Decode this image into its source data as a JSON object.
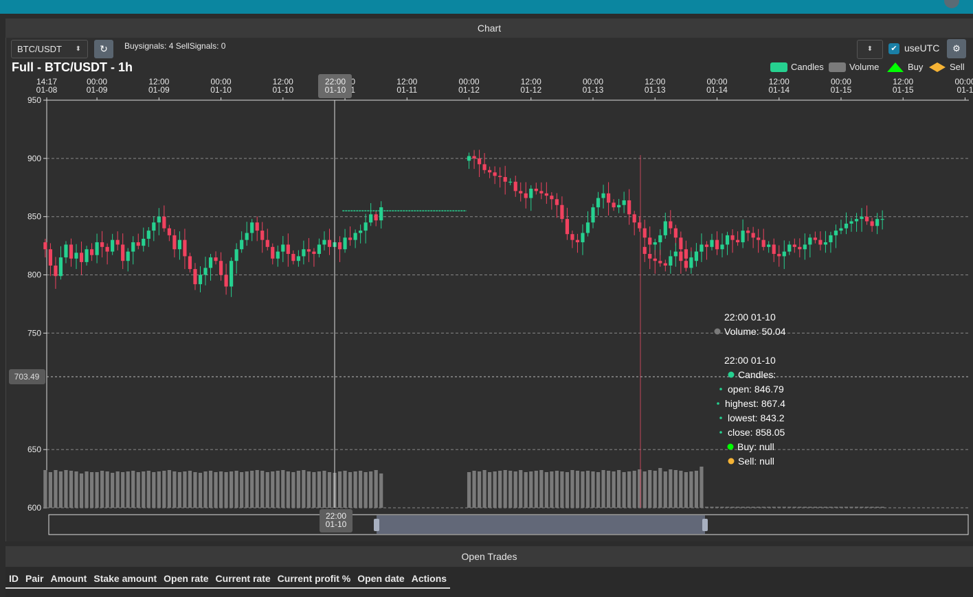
{
  "panel": {
    "title": "Chart"
  },
  "pair_select": {
    "value": "BTC/USDT"
  },
  "refresh_label": "↻",
  "signals": "Buysignals: 4  SellSignals: 0",
  "use_utc_label": "useUTC",
  "trades": {
    "title": "Open Trades",
    "columns": [
      "ID",
      "Pair",
      "Amount",
      "Stake amount",
      "Open rate",
      "Current rate",
      "Current profit %",
      "Open date",
      "Actions"
    ]
  },
  "colors": {
    "up": "#26d190",
    "down": "#f0425f",
    "volume": "#7a7a7a",
    "buy": "#00ff00",
    "sell": "#f5b335",
    "accent": "#0b86a0"
  },
  "chart_data": {
    "type": "candlestick",
    "title": "Full - BTC/USDT - 1h",
    "legend": [
      "Candles",
      "Volume",
      "Buy",
      "Sell"
    ],
    "legend_position": "top-right",
    "ylim": [
      600,
      950
    ],
    "yticks": [
      "950",
      "900",
      "850",
      "800",
      "750",
      "650",
      "600"
    ],
    "y_pointer_label": "703.49",
    "x_ticks": [
      [
        "14:17",
        "01-08"
      ],
      [
        "00:00",
        "01-09"
      ],
      [
        "12:00",
        "01-09"
      ],
      [
        "00:00",
        "01-10"
      ],
      [
        "12:00",
        "01-10"
      ],
      [
        "00:00",
        "01-11"
      ],
      [
        "12:00",
        "01-11"
      ],
      [
        "00:00",
        "01-12"
      ],
      [
        "12:00",
        "01-12"
      ],
      [
        "00:00",
        "01-13"
      ],
      [
        "12:00",
        "01-13"
      ],
      [
        "00:00",
        "01-14"
      ],
      [
        "12:00",
        "01-14"
      ],
      [
        "00:00",
        "01-15"
      ],
      [
        "12:00",
        "01-15"
      ],
      [
        "00:00",
        "01-1"
      ]
    ],
    "x_pointer_label": [
      "22:00",
      "01-10"
    ],
    "grid": true,
    "tooltip": {
      "volume_time": "22:00 01-10",
      "volume": "Volume: 50.04",
      "candle_time": "22:00 01-10",
      "candles": "Candles:",
      "open": "open: 846.79",
      "highest": "highest: 867.4",
      "lowest": "lowest: 843.2",
      "close": "close: 858.05",
      "buy": "Buy: null",
      "sell": "Sell: null"
    },
    "segments": [
      {
        "note": "2024-01-08 14:00 to 2024-01-10 23:00",
        "closes": [
          822,
          808,
          799,
          815,
          826,
          814,
          819,
          811,
          822,
          817,
          828,
          824,
          820,
          830,
          826,
          812,
          820,
          828,
          825,
          831,
          838,
          845,
          850,
          840,
          834,
          822,
          830,
          816,
          805,
          792,
          800,
          806,
          815,
          812,
          800,
          790,
          812,
          822,
          830,
          836,
          845,
          838,
          830,
          824,
          814,
          820,
          826,
          818,
          812,
          816,
          822,
          820,
          818,
          826,
          830,
          824,
          828,
          822,
          832,
          830,
          836,
          838,
          845,
          852,
          846.79,
          858.05
        ],
        "volumes": [
          55,
          52,
          55,
          53,
          55,
          54,
          53,
          50,
          53,
          52,
          52,
          54,
          53,
          51,
          53,
          52,
          53,
          54,
          52,
          53,
          54,
          52,
          53,
          54,
          55,
          53,
          52,
          53,
          54,
          52,
          51,
          53,
          54,
          52,
          53,
          52,
          53,
          54,
          52,
          53,
          54,
          55,
          54,
          52,
          53,
          54,
          55,
          53,
          52,
          54,
          55,
          53,
          52,
          53,
          54,
          52,
          51,
          53,
          54,
          52,
          53,
          54,
          52,
          53,
          55,
          50.04
        ]
      },
      {
        "note": "2024-01-12 00:00 to 2024-01-13 10:00",
        "closes": [
          902,
          900,
          895,
          890,
          888,
          885,
          884,
          880,
          880,
          872,
          870,
          866,
          874,
          872,
          870,
          868,
          865,
          860,
          848,
          835,
          830,
          828,
          836,
          845,
          858,
          866,
          870,
          862,
          858,
          860,
          864,
          852,
          845,
          840,
          832,
          826,
          828,
          834,
          846,
          840,
          832,
          822,
          814,
          812,
          820,
          822
        ],
        "volumes": [
          52,
          54,
          53,
          55,
          52,
          53,
          54,
          55,
          54,
          53,
          55,
          52,
          53,
          54,
          55,
          52,
          53,
          54,
          53,
          52,
          55,
          54,
          53,
          54,
          53,
          52,
          55,
          54,
          53,
          55,
          52,
          53,
          54,
          56,
          53,
          55,
          54,
          58,
          53,
          56,
          55,
          54,
          52,
          53,
          54,
          60
        ]
      },
      {
        "note": "2024-01-13 10:00 to 2024-01-15 23:00, sparse volume",
        "closes": [
          818,
          814,
          812,
          810,
          808,
          816,
          820,
          812,
          806,
          815,
          820,
          826,
          824,
          830,
          822,
          826,
          834,
          830,
          828,
          838,
          836,
          832,
          830,
          824,
          826,
          818,
          816,
          820,
          826,
          824,
          822,
          826,
          832,
          830,
          826,
          828,
          834,
          838,
          840,
          844,
          846,
          848,
          850,
          846,
          842,
          848,
          848
        ]
      }
    ],
    "flat_segment": {
      "from": "2024-01-10 23:00",
      "to": "2024-01-11 21:00",
      "value": 855
    }
  }
}
